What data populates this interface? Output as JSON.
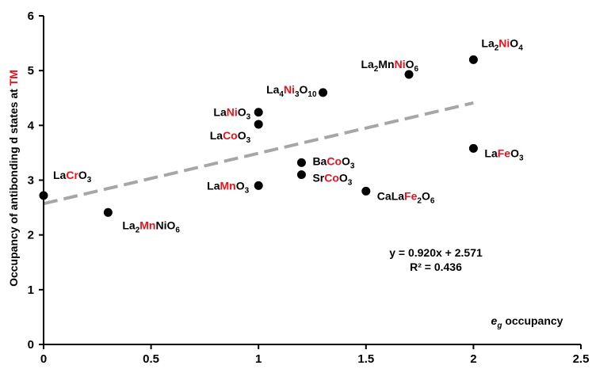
{
  "chart_data": {
    "type": "scatter",
    "title": "",
    "ylabel": {
      "parts": [
        {
          "text": "Occupancy of antibonding d states at ",
          "color": "#000000"
        },
        {
          "text": "TM",
          "color": "#e8141b"
        }
      ]
    },
    "xlabel": {
      "parts": [
        {
          "text": "e",
          "italic": true
        },
        {
          "text": "g",
          "italic": true,
          "sub": true
        },
        {
          "text": " occupancy"
        }
      ]
    },
    "xlim": [
      0,
      2.5
    ],
    "ylim": [
      0,
      6
    ],
    "xticks": [
      "0",
      "0.5",
      "1",
      "1.5",
      "2",
      "2.5"
    ],
    "yticks": [
      "0",
      "1",
      "2",
      "3",
      "4",
      "5",
      "6"
    ],
    "grid": false,
    "colors": {
      "point": "#000000",
      "trend": "#a6a6a6",
      "highlight": "#e8141b"
    },
    "points": [
      {
        "x": 0.0,
        "y": 2.72,
        "label": [
          {
            "t": "La"
          },
          {
            "t": "Cr",
            "red": true
          },
          {
            "t": "O"
          },
          {
            "t": "3",
            "sub": true
          }
        ],
        "anchor": "start",
        "dx": 12,
        "dy": -26
      },
      {
        "x": 0.3,
        "y": 2.41,
        "label": [
          {
            "t": "La"
          },
          {
            "t": "2",
            "sub": true
          },
          {
            "t": "Mn",
            "red": true
          },
          {
            "t": "NiO"
          },
          {
            "t": "6",
            "sub": true
          }
        ],
        "anchor": "start",
        "dx": 18,
        "dy": 16
      },
      {
        "x": 1.0,
        "y": 4.24,
        "label": [
          {
            "t": "La"
          },
          {
            "t": "Ni",
            "red": true
          },
          {
            "t": "O"
          },
          {
            "t": "3",
            "sub": true
          }
        ],
        "anchor": "end",
        "dx": -10,
        "dy": 0
      },
      {
        "x": 1.0,
        "y": 4.02,
        "label": [
          {
            "t": "La"
          },
          {
            "t": "Co",
            "red": true
          },
          {
            "t": "O"
          },
          {
            "t": "3",
            "sub": true
          }
        ],
        "anchor": "end",
        "dx": -10,
        "dy": 14
      },
      {
        "x": 1.0,
        "y": 2.9,
        "label": [
          {
            "t": "La"
          },
          {
            "t": "Mn",
            "red": true
          },
          {
            "t": "O"
          },
          {
            "t": "3",
            "sub": true
          }
        ],
        "anchor": "end",
        "dx": -12,
        "dy": 0
      },
      {
        "x": 1.2,
        "y": 3.32,
        "label": [
          {
            "t": "Ba"
          },
          {
            "t": "Co",
            "red": true
          },
          {
            "t": "O"
          },
          {
            "t": "3",
            "sub": true
          }
        ],
        "anchor": "start",
        "dx": 14,
        "dy": -2
      },
      {
        "x": 1.2,
        "y": 3.1,
        "label": [
          {
            "t": "Sr"
          },
          {
            "t": "Co",
            "red": true
          },
          {
            "t": "O"
          },
          {
            "t": "3",
            "sub": true
          }
        ],
        "anchor": "start",
        "dx": 14,
        "dy": 4
      },
      {
        "x": 1.3,
        "y": 4.6,
        "label": [
          {
            "t": "La"
          },
          {
            "t": "4",
            "sub": true
          },
          {
            "t": "Ni",
            "red": true
          },
          {
            "t": "3",
            "sub": true
          },
          {
            "t": "O"
          },
          {
            "t": "10",
            "sub": true
          }
        ],
        "anchor": "end",
        "dx": -8,
        "dy": -4
      },
      {
        "x": 1.5,
        "y": 2.8,
        "label": [
          {
            "t": "CaLa"
          },
          {
            "t": "Fe",
            "red": true
          },
          {
            "t": "2",
            "sub": true
          },
          {
            "t": "O"
          },
          {
            "t": "6",
            "sub": true
          }
        ],
        "anchor": "start",
        "dx": 14,
        "dy": 6
      },
      {
        "x": 1.7,
        "y": 4.93,
        "label": [
          {
            "t": "La"
          },
          {
            "t": "2",
            "sub": true
          },
          {
            "t": "Mn"
          },
          {
            "t": "Ni",
            "red": true
          },
          {
            "t": "O"
          },
          {
            "t": "6",
            "sub": true
          }
        ],
        "anchor": "end",
        "dx": 12,
        "dy": -13
      },
      {
        "x": 2.0,
        "y": 5.2,
        "label": [
          {
            "t": "La"
          },
          {
            "t": "2",
            "sub": true
          },
          {
            "t": "Ni",
            "red": true
          },
          {
            "t": "O"
          },
          {
            "t": "4",
            "sub": true
          }
        ],
        "anchor": "start",
        "dx": 10,
        "dy": -21
      },
      {
        "x": 2.0,
        "y": 3.58,
        "label": [
          {
            "t": "La"
          },
          {
            "t": "Fe",
            "red": true
          },
          {
            "t": "O"
          },
          {
            "t": "3",
            "sub": true
          }
        ],
        "anchor": "start",
        "dx": 14,
        "dy": 6
      }
    ],
    "trendline": {
      "slope": 0.92,
      "intercept": 2.571,
      "x_range": [
        0,
        2
      ]
    },
    "equation": "y = 0.920x + 2.571",
    "r2": "R² = 0.436"
  }
}
